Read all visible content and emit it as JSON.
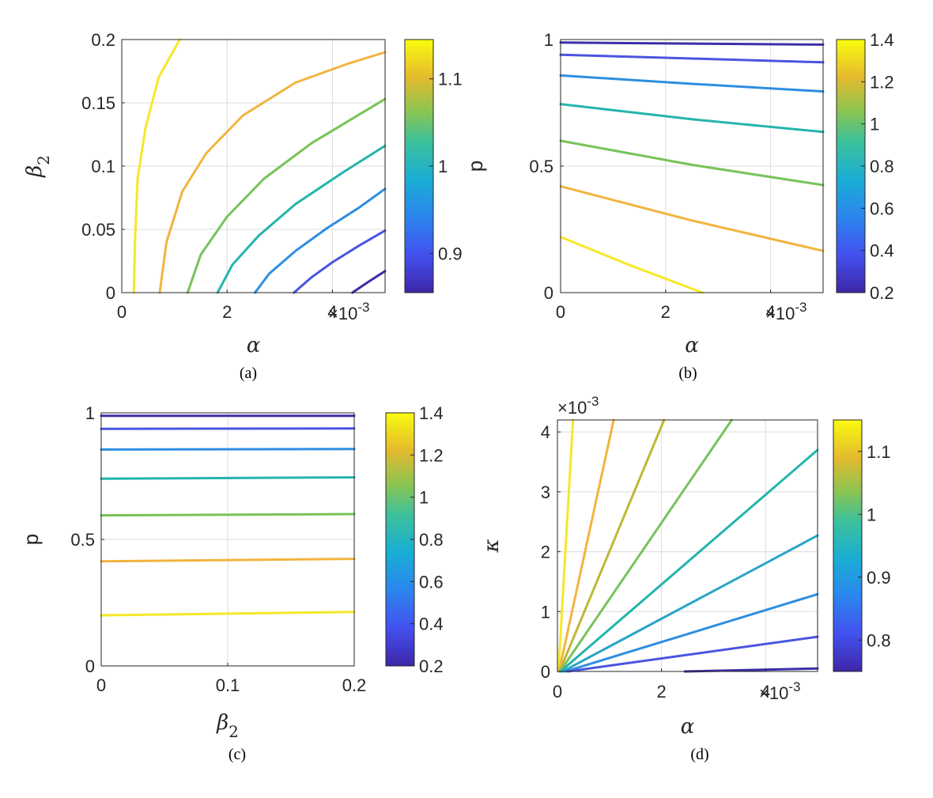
{
  "chart_data": [
    {
      "type": "line",
      "caption": "(a)",
      "xlabel": "α",
      "ylabel": "β",
      "ylabel_sub": "2",
      "x_exponent": "×10",
      "x_exponent_power": "-3",
      "y_exponent": "",
      "y_exponent_power": "",
      "xlim": [
        0,
        0.005
      ],
      "ylim": [
        0,
        0.2
      ],
      "xticks": [
        0,
        0.002,
        0.004
      ],
      "xtick_labels": [
        "0",
        "2",
        "4"
      ],
      "yticks": [
        0,
        0.05,
        0.1,
        0.15,
        0.2
      ],
      "ytick_labels": [
        "0",
        "0.05",
        "0.1",
        "0.15",
        "0.2"
      ],
      "grid": true,
      "colorbar": {
        "range": [
          0.855,
          1.145
        ],
        "ticks": [
          0.9,
          1.0,
          1.1
        ],
        "tick_labels": [
          "0.9",
          "1",
          "1.1"
        ]
      },
      "series": [
        {
          "level": 1.14,
          "color": "#f5e829",
          "x": [
            0.00023,
            0.00025,
            0.0003,
            0.00045,
            0.0007,
            0.0011
          ],
          "y": [
            0,
            0.04,
            0.09,
            0.13,
            0.17,
            0.2
          ]
        },
        {
          "level": 1.09,
          "color": "#f2b43f",
          "x": [
            0.00072,
            0.00085,
            0.00115,
            0.0016,
            0.0023,
            0.0033,
            0.0043,
            0.005
          ],
          "y": [
            0,
            0.04,
            0.08,
            0.11,
            0.14,
            0.166,
            0.181,
            0.19
          ]
        },
        {
          "level": 1.04,
          "color": "#78c35a",
          "x": [
            0.00125,
            0.0015,
            0.002,
            0.0027,
            0.0036,
            0.0044,
            0.005
          ],
          "y": [
            0,
            0.03,
            0.06,
            0.09,
            0.118,
            0.138,
            0.153
          ]
        },
        {
          "level": 0.99,
          "color": "#24b4ad",
          "x": [
            0.00182,
            0.0021,
            0.0026,
            0.0033,
            0.0042,
            0.005
          ],
          "y": [
            0,
            0.022,
            0.045,
            0.07,
            0.095,
            0.116
          ]
        },
        {
          "level": 0.94,
          "color": "#2e8ee0",
          "x": [
            0.00253,
            0.0028,
            0.0033,
            0.0039,
            0.0045,
            0.005
          ],
          "y": [
            0,
            0.015,
            0.033,
            0.051,
            0.067,
            0.082
          ]
        },
        {
          "level": 0.89,
          "color": "#4a55e0",
          "x": [
            0.00327,
            0.0036,
            0.004,
            0.0045,
            0.005
          ],
          "y": [
            0,
            0.012,
            0.024,
            0.037,
            0.049
          ]
        },
        {
          "level": 0.86,
          "color": "#3b2fa8",
          "x": [
            0.00438,
            0.0047,
            0.005
          ],
          "y": [
            0,
            0.009,
            0.017
          ]
        }
      ]
    },
    {
      "type": "line",
      "caption": "(b)",
      "xlabel": "α",
      "ylabel": "p",
      "ylabel_sub": "",
      "x_exponent": "×10",
      "x_exponent_power": "-3",
      "y_exponent": "",
      "y_exponent_power": "",
      "xlim": [
        0,
        0.005
      ],
      "ylim": [
        0,
        1
      ],
      "xticks": [
        0,
        0.002,
        0.004
      ],
      "xtick_labels": [
        "0",
        "2",
        "4"
      ],
      "yticks": [
        0,
        0.5,
        1
      ],
      "ytick_labels": [
        "0",
        "0.5",
        "1"
      ],
      "grid": true,
      "colorbar": {
        "range": [
          0.2,
          1.4
        ],
        "ticks": [
          0.2,
          0.4,
          0.6,
          0.8,
          1.0,
          1.2,
          1.4
        ],
        "tick_labels": [
          "0.2",
          "0.4",
          "0.6",
          "0.8",
          "1",
          "1.2",
          "1.4"
        ]
      },
      "series": [
        {
          "level": 0.2,
          "color": "#3b2fa8",
          "x": [
            0,
            0.005
          ],
          "y": [
            0.988,
            0.98
          ]
        },
        {
          "level": 0.4,
          "color": "#4a55e0",
          "x": [
            0,
            0.0025,
            0.005
          ],
          "y": [
            0.94,
            0.925,
            0.91
          ]
        },
        {
          "level": 0.6,
          "color": "#2e8ee0",
          "x": [
            0,
            0.0025,
            0.005
          ],
          "y": [
            0.858,
            0.825,
            0.795
          ]
        },
        {
          "level": 0.8,
          "color": "#24b4ad",
          "x": [
            0,
            0.0025,
            0.005
          ],
          "y": [
            0.745,
            0.685,
            0.635
          ]
        },
        {
          "level": 1.0,
          "color": "#78c35a",
          "x": [
            0,
            0.0025,
            0.005
          ],
          "y": [
            0.6,
            0.505,
            0.425
          ]
        },
        {
          "level": 1.2,
          "color": "#f2b43f",
          "x": [
            0,
            0.0025,
            0.005
          ],
          "y": [
            0.42,
            0.285,
            0.165
          ]
        },
        {
          "level": 1.4,
          "color": "#f5e829",
          "x": [
            0,
            0.0013,
            0.0027
          ],
          "y": [
            0.22,
            0.11,
            0
          ]
        }
      ]
    },
    {
      "type": "line",
      "caption": "(c)",
      "xlabel": "β",
      "xlabel_sub": "2",
      "ylabel": "p",
      "ylabel_sub": "",
      "x_exponent": "",
      "x_exponent_power": "",
      "y_exponent": "",
      "y_exponent_power": "",
      "xlim": [
        0,
        0.2
      ],
      "ylim": [
        0,
        1
      ],
      "xticks": [
        0,
        0.1,
        0.2
      ],
      "xtick_labels": [
        "0",
        "0.1",
        "0.2"
      ],
      "yticks": [
        0,
        0.5,
        1
      ],
      "ytick_labels": [
        "0",
        "0.5",
        "1"
      ],
      "grid": true,
      "colorbar": {
        "range": [
          0.2,
          1.4
        ],
        "ticks": [
          0.2,
          0.4,
          0.6,
          0.8,
          1.0,
          1.2,
          1.4
        ],
        "tick_labels": [
          "0.2",
          "0.4",
          "0.6",
          "0.8",
          "1",
          "1.2",
          "1.4"
        ]
      },
      "series": [
        {
          "level": 0.2,
          "color": "#3b2fa8",
          "x": [
            0,
            0.2
          ],
          "y": [
            0.988,
            0.988
          ]
        },
        {
          "level": 0.4,
          "color": "#4a55e0",
          "x": [
            0,
            0.2
          ],
          "y": [
            0.937,
            0.938
          ]
        },
        {
          "level": 0.6,
          "color": "#2e8ee0",
          "x": [
            0,
            0.2
          ],
          "y": [
            0.855,
            0.857
          ]
        },
        {
          "level": 0.8,
          "color": "#24b4ad",
          "x": [
            0,
            0.2
          ],
          "y": [
            0.74,
            0.745
          ]
        },
        {
          "level": 1.0,
          "color": "#78c35a",
          "x": [
            0,
            0.2
          ],
          "y": [
            0.595,
            0.6
          ]
        },
        {
          "level": 1.2,
          "color": "#f2b43f",
          "x": [
            0,
            0.2
          ],
          "y": [
            0.413,
            0.423
          ]
        },
        {
          "level": 1.4,
          "color": "#f5e829",
          "x": [
            0,
            0.2
          ],
          "y": [
            0.2,
            0.213
          ]
        }
      ]
    },
    {
      "type": "line",
      "caption": "(d)",
      "xlabel": "α",
      "ylabel": "κ",
      "ylabel_sub": "",
      "x_exponent": "×10",
      "x_exponent_power": "-3",
      "y_exponent": "×10",
      "y_exponent_power": "-3",
      "xlim": [
        0,
        0.005
      ],
      "ylim": [
        0,
        0.0042
      ],
      "xticks": [
        0,
        0.002,
        0.004
      ],
      "xtick_labels": [
        "0",
        "2",
        "4"
      ],
      "yticks": [
        0,
        0.001,
        0.002,
        0.003,
        0.004
      ],
      "ytick_labels": [
        "0",
        "1",
        "2",
        "3",
        "4"
      ],
      "grid": true,
      "colorbar": {
        "range": [
          0.75,
          1.15
        ],
        "ticks": [
          0.8,
          0.9,
          1.0,
          1.1
        ],
        "tick_labels": [
          "0.8",
          "0.9",
          "1",
          "1.1"
        ]
      },
      "series": [
        {
          "level": 1.14,
          "color": "#f5e829",
          "x": [
            2e-05,
            0.0003
          ],
          "y": [
            0,
            0.0042
          ]
        },
        {
          "level": 1.1,
          "color": "#f2b43f",
          "x": [
            3e-05,
            0.00108
          ],
          "y": [
            0,
            0.0042
          ]
        },
        {
          "level": 1.06,
          "color": "#c0b834",
          "x": [
            4e-05,
            0.00205
          ],
          "y": [
            0,
            0.0042
          ]
        },
        {
          "level": 1.02,
          "color": "#78c35a",
          "x": [
            5e-05,
            0.00335
          ],
          "y": [
            0,
            0.0042
          ]
        },
        {
          "level": 0.98,
          "color": "#24b4ad",
          "x": [
            6e-05,
            0.005
          ],
          "y": [
            0,
            0.0037
          ]
        },
        {
          "level": 0.94,
          "color": "#2aa5c8",
          "x": [
            0.0001,
            0.005
          ],
          "y": [
            0,
            0.00227
          ]
        },
        {
          "level": 0.9,
          "color": "#2e8ee0",
          "x": [
            0.00015,
            0.005
          ],
          "y": [
            0,
            0.00129
          ]
        },
        {
          "level": 0.85,
          "color": "#4a55e0",
          "x": [
            0.0002,
            0.005
          ],
          "y": [
            0,
            0.00058
          ]
        },
        {
          "level": 0.77,
          "color": "#3b2fa8",
          "x": [
            0.00245,
            0.005
          ],
          "y": [
            0,
            5e-05
          ]
        }
      ]
    }
  ]
}
